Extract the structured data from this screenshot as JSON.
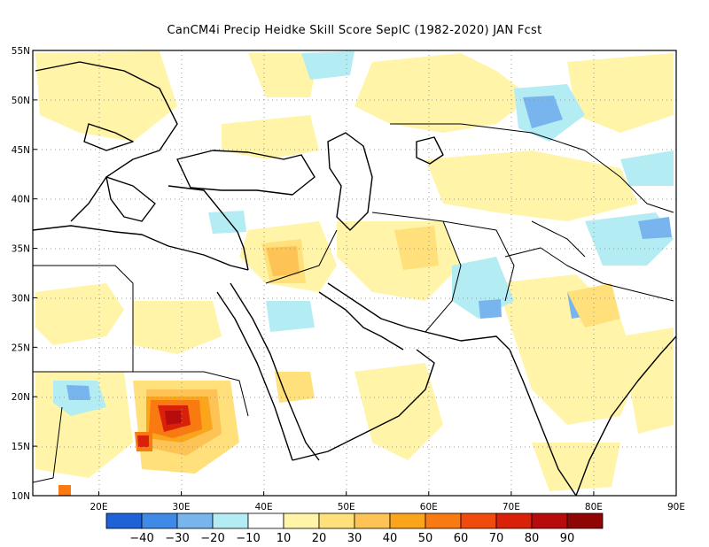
{
  "title": "CanCM4i Precip Heidke Skill Score SepIC (1982-2020) JAN Fcst",
  "map": {
    "lon_range": [
      12,
      90
    ],
    "lat_range": [
      10,
      55
    ],
    "lat_ticks": [
      "55N",
      "50N",
      "45N",
      "40N",
      "35N",
      "30N",
      "25N",
      "20N",
      "15N",
      "10N"
    ],
    "lon_ticks": [
      "20E",
      "30E",
      "40E",
      "50E",
      "60E",
      "70E",
      "80E",
      "90E"
    ],
    "grid": "dotted"
  },
  "colorbar": {
    "labels": [
      "-40",
      "-30",
      "-20",
      "-10",
      "10",
      "20",
      "30",
      "40",
      "50",
      "60",
      "70",
      "80",
      "90"
    ],
    "colors": [
      "#1f62d8",
      "#3f8ae6",
      "#78b4ee",
      "#b4ecf4",
      "#ffffff",
      "#fff4a8",
      "#ffe07a",
      "#fdc455",
      "#fba51c",
      "#f97a10",
      "#f04b0c",
      "#d92008",
      "#b80c0c",
      "#900404"
    ]
  },
  "anomalies": [
    {
      "name": "sudan-high-skill",
      "color": "#d92008",
      "level": 80
    },
    {
      "name": "sudan-mid-skill",
      "color": "#f97a10",
      "level": 60
    },
    {
      "name": "iraq-skill",
      "color": "#fba51c",
      "level": 40
    },
    {
      "name": "india-negative",
      "color": "#78b4ee",
      "level": -20
    }
  ]
}
